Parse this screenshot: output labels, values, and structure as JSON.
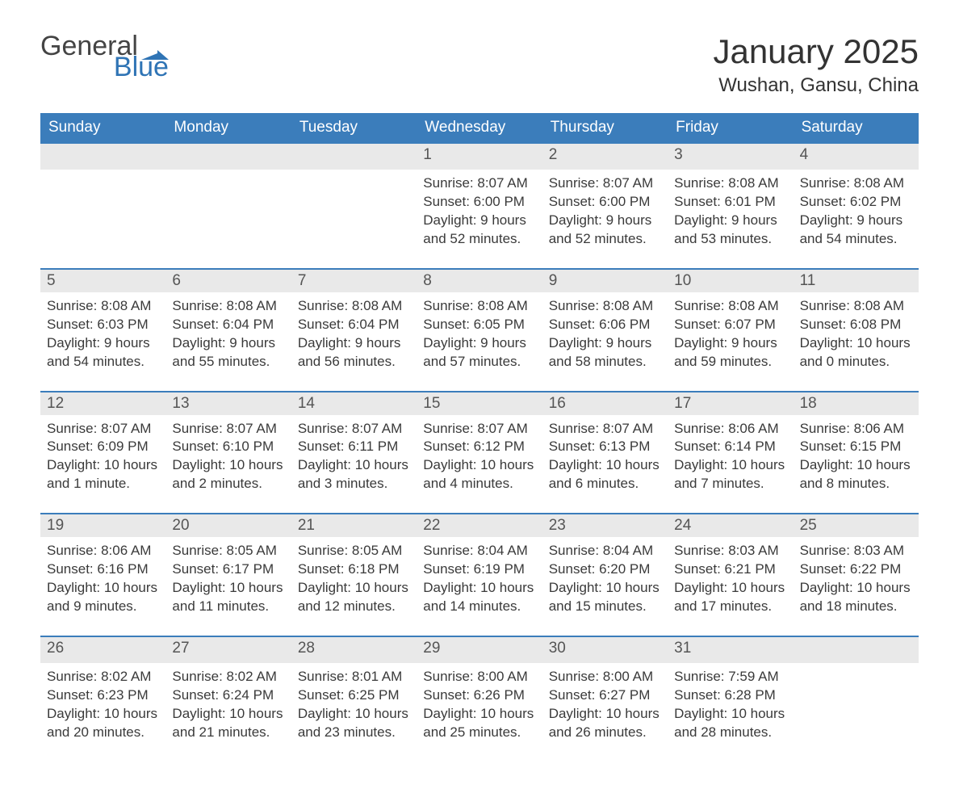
{
  "logo": {
    "word1": "General",
    "word2": "Blue",
    "word1_color": "#444444",
    "word2_color": "#2f74b5",
    "flag_color": "#2f74b5"
  },
  "header": {
    "title": "January 2025",
    "location": "Wushan, Gansu, China",
    "title_fontsize": 42,
    "location_fontsize": 24
  },
  "style": {
    "header_bg": "#3b7dbb",
    "header_fg": "#ffffff",
    "daynum_bg": "#e9e9e9",
    "week_border": "#3b7dbb",
    "body_color": "#3a3a3a",
    "page_bg": "#ffffff",
    "cell_fontsize": 17
  },
  "weekdays": [
    "Sunday",
    "Monday",
    "Tuesday",
    "Wednesday",
    "Thursday",
    "Friday",
    "Saturday"
  ],
  "leading_blanks": 3,
  "days": [
    {
      "n": "1",
      "sunrise": "Sunrise: 8:07 AM",
      "sunset": "Sunset: 6:00 PM",
      "daylight": "Daylight: 9 hours and 52 minutes."
    },
    {
      "n": "2",
      "sunrise": "Sunrise: 8:07 AM",
      "sunset": "Sunset: 6:00 PM",
      "daylight": "Daylight: 9 hours and 52 minutes."
    },
    {
      "n": "3",
      "sunrise": "Sunrise: 8:08 AM",
      "sunset": "Sunset: 6:01 PM",
      "daylight": "Daylight: 9 hours and 53 minutes."
    },
    {
      "n": "4",
      "sunrise": "Sunrise: 8:08 AM",
      "sunset": "Sunset: 6:02 PM",
      "daylight": "Daylight: 9 hours and 54 minutes."
    },
    {
      "n": "5",
      "sunrise": "Sunrise: 8:08 AM",
      "sunset": "Sunset: 6:03 PM",
      "daylight": "Daylight: 9 hours and 54 minutes."
    },
    {
      "n": "6",
      "sunrise": "Sunrise: 8:08 AM",
      "sunset": "Sunset: 6:04 PM",
      "daylight": "Daylight: 9 hours and 55 minutes."
    },
    {
      "n": "7",
      "sunrise": "Sunrise: 8:08 AM",
      "sunset": "Sunset: 6:04 PM",
      "daylight": "Daylight: 9 hours and 56 minutes."
    },
    {
      "n": "8",
      "sunrise": "Sunrise: 8:08 AM",
      "sunset": "Sunset: 6:05 PM",
      "daylight": "Daylight: 9 hours and 57 minutes."
    },
    {
      "n": "9",
      "sunrise": "Sunrise: 8:08 AM",
      "sunset": "Sunset: 6:06 PM",
      "daylight": "Daylight: 9 hours and 58 minutes."
    },
    {
      "n": "10",
      "sunrise": "Sunrise: 8:08 AM",
      "sunset": "Sunset: 6:07 PM",
      "daylight": "Daylight: 9 hours and 59 minutes."
    },
    {
      "n": "11",
      "sunrise": "Sunrise: 8:08 AM",
      "sunset": "Sunset: 6:08 PM",
      "daylight": "Daylight: 10 hours and 0 minutes."
    },
    {
      "n": "12",
      "sunrise": "Sunrise: 8:07 AM",
      "sunset": "Sunset: 6:09 PM",
      "daylight": "Daylight: 10 hours and 1 minute."
    },
    {
      "n": "13",
      "sunrise": "Sunrise: 8:07 AM",
      "sunset": "Sunset: 6:10 PM",
      "daylight": "Daylight: 10 hours and 2 minutes."
    },
    {
      "n": "14",
      "sunrise": "Sunrise: 8:07 AM",
      "sunset": "Sunset: 6:11 PM",
      "daylight": "Daylight: 10 hours and 3 minutes."
    },
    {
      "n": "15",
      "sunrise": "Sunrise: 8:07 AM",
      "sunset": "Sunset: 6:12 PM",
      "daylight": "Daylight: 10 hours and 4 minutes."
    },
    {
      "n": "16",
      "sunrise": "Sunrise: 8:07 AM",
      "sunset": "Sunset: 6:13 PM",
      "daylight": "Daylight: 10 hours and 6 minutes."
    },
    {
      "n": "17",
      "sunrise": "Sunrise: 8:06 AM",
      "sunset": "Sunset: 6:14 PM",
      "daylight": "Daylight: 10 hours and 7 minutes."
    },
    {
      "n": "18",
      "sunrise": "Sunrise: 8:06 AM",
      "sunset": "Sunset: 6:15 PM",
      "daylight": "Daylight: 10 hours and 8 minutes."
    },
    {
      "n": "19",
      "sunrise": "Sunrise: 8:06 AM",
      "sunset": "Sunset: 6:16 PM",
      "daylight": "Daylight: 10 hours and 9 minutes."
    },
    {
      "n": "20",
      "sunrise": "Sunrise: 8:05 AM",
      "sunset": "Sunset: 6:17 PM",
      "daylight": "Daylight: 10 hours and 11 minutes."
    },
    {
      "n": "21",
      "sunrise": "Sunrise: 8:05 AM",
      "sunset": "Sunset: 6:18 PM",
      "daylight": "Daylight: 10 hours and 12 minutes."
    },
    {
      "n": "22",
      "sunrise": "Sunrise: 8:04 AM",
      "sunset": "Sunset: 6:19 PM",
      "daylight": "Daylight: 10 hours and 14 minutes."
    },
    {
      "n": "23",
      "sunrise": "Sunrise: 8:04 AM",
      "sunset": "Sunset: 6:20 PM",
      "daylight": "Daylight: 10 hours and 15 minutes."
    },
    {
      "n": "24",
      "sunrise": "Sunrise: 8:03 AM",
      "sunset": "Sunset: 6:21 PM",
      "daylight": "Daylight: 10 hours and 17 minutes."
    },
    {
      "n": "25",
      "sunrise": "Sunrise: 8:03 AM",
      "sunset": "Sunset: 6:22 PM",
      "daylight": "Daylight: 10 hours and 18 minutes."
    },
    {
      "n": "26",
      "sunrise": "Sunrise: 8:02 AM",
      "sunset": "Sunset: 6:23 PM",
      "daylight": "Daylight: 10 hours and 20 minutes."
    },
    {
      "n": "27",
      "sunrise": "Sunrise: 8:02 AM",
      "sunset": "Sunset: 6:24 PM",
      "daylight": "Daylight: 10 hours and 21 minutes."
    },
    {
      "n": "28",
      "sunrise": "Sunrise: 8:01 AM",
      "sunset": "Sunset: 6:25 PM",
      "daylight": "Daylight: 10 hours and 23 minutes."
    },
    {
      "n": "29",
      "sunrise": "Sunrise: 8:00 AM",
      "sunset": "Sunset: 6:26 PM",
      "daylight": "Daylight: 10 hours and 25 minutes."
    },
    {
      "n": "30",
      "sunrise": "Sunrise: 8:00 AM",
      "sunset": "Sunset: 6:27 PM",
      "daylight": "Daylight: 10 hours and 26 minutes."
    },
    {
      "n": "31",
      "sunrise": "Sunrise: 7:59 AM",
      "sunset": "Sunset: 6:28 PM",
      "daylight": "Daylight: 10 hours and 28 minutes."
    }
  ],
  "trailing_blanks": 1
}
